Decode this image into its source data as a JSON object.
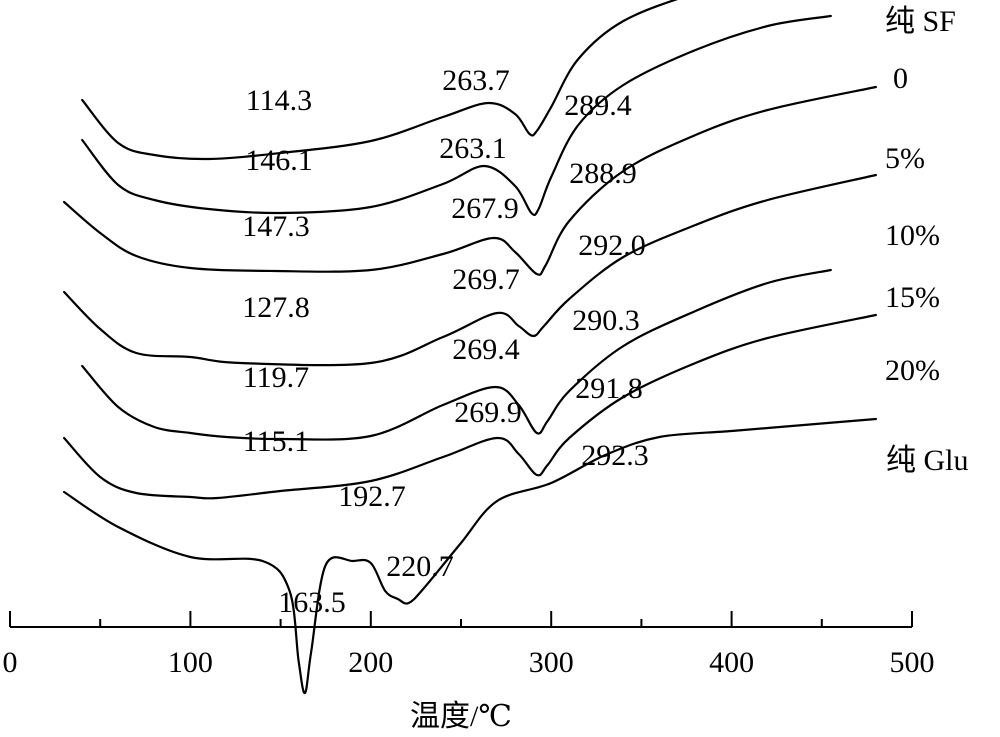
{
  "chart_data": {
    "type": "line",
    "title": "",
    "xlabel": "温度/℃",
    "ylabel": "",
    "xlim": [
      0,
      500
    ],
    "xticks": [
      0,
      100,
      200,
      300,
      400,
      500
    ],
    "grid": false,
    "legend": "curve labels at right end of each curve",
    "series": [
      {
        "name": "纯 SF",
        "x": [
          40,
          60,
          80,
          110,
          150,
          200,
          240,
          265,
          280,
          288,
          292,
          300,
          315,
          340,
          380,
          420,
          455
        ],
        "y": [
          0,
          -0.43,
          -0.55,
          -0.59,
          -0.53,
          -0.41,
          -0.17,
          -0.03,
          -0.14,
          -0.34,
          -0.31,
          -0.07,
          0.41,
          0.79,
          1.07,
          1.27,
          1.38
        ],
        "annotations": [
          {
            "x": 114.3,
            "label": "114.3"
          },
          {
            "x": 263.7,
            "label": "263.7"
          },
          {
            "x": 289.4,
            "label": "289.4"
          }
        ]
      },
      {
        "name": "0",
        "x": [
          40,
          60,
          80,
          110,
          150,
          200,
          240,
          263,
          280,
          289,
          293,
          300,
          315,
          340,
          380,
          420,
          455
        ],
        "y": [
          0,
          -0.45,
          -0.6,
          -0.69,
          -0.73,
          -0.67,
          -0.44,
          -0.26,
          -0.46,
          -0.73,
          -0.69,
          -0.37,
          0.15,
          0.55,
          0.9,
          1.14,
          1.24
        ],
        "annotations": [
          {
            "x": 146.1,
            "label": "146.1"
          },
          {
            "x": 263.1,
            "label": "263.1"
          },
          {
            "x": 288.9,
            "label": "288.9"
          }
        ]
      },
      {
        "name": "5%",
        "x": [
          30,
          50,
          70,
          100,
          147,
          200,
          240,
          268,
          280,
          292,
          297,
          310,
          340,
          380,
          420,
          480
        ],
        "y": [
          0,
          -0.31,
          -0.54,
          -0.66,
          -0.69,
          -0.68,
          -0.52,
          -0.36,
          -0.5,
          -0.72,
          -0.63,
          -0.19,
          0.31,
          0.67,
          0.92,
          1.15
        ],
        "annotations": [
          {
            "x": 147.3,
            "label": "147.3"
          },
          {
            "x": 267.9,
            "label": "267.9"
          },
          {
            "x": 292.0,
            "label": "292.0"
          }
        ]
      },
      {
        "name": "10%",
        "x": [
          30,
          50,
          70,
          100,
          128,
          200,
          240,
          270,
          282,
          290,
          296,
          310,
          340,
          380,
          420,
          480
        ],
        "y": [
          0,
          -0.37,
          -0.61,
          -0.65,
          -0.71,
          -0.71,
          -0.45,
          -0.21,
          -0.34,
          -0.44,
          -0.34,
          -0.07,
          0.35,
          0.67,
          0.92,
          1.17
        ],
        "annotations": [
          {
            "x": 127.8,
            "label": "127.8"
          },
          {
            "x": 269.7,
            "label": "269.7"
          },
          {
            "x": 290.3,
            "label": "290.3"
          }
        ]
      },
      {
        "name": "15%",
        "x": [
          40,
          60,
          80,
          100,
          120,
          150,
          200,
          240,
          269,
          282,
          292,
          298,
          310,
          340,
          380,
          420,
          455
        ],
        "y": [
          0,
          -0.41,
          -0.61,
          -0.67,
          -0.71,
          -0.73,
          -0.7,
          -0.39,
          -0.21,
          -0.39,
          -0.67,
          -0.55,
          -0.25,
          0.2,
          0.55,
          0.83,
          0.96
        ],
        "annotations": [
          {
            "x": 119.7,
            "label": "119.7"
          },
          {
            "x": 269.4,
            "label": "269.4"
          },
          {
            "x": 291.8,
            "label": "291.8"
          }
        ]
      },
      {
        "name": "20%",
        "x": [
          30,
          50,
          70,
          100,
          115,
          150,
          200,
          240,
          270,
          282,
          292,
          298,
          310,
          340,
          380,
          420,
          480
        ],
        "y": [
          0,
          -0.39,
          -0.55,
          -0.59,
          -0.6,
          -0.53,
          -0.43,
          -0.19,
          0,
          -0.16,
          -0.37,
          -0.27,
          0,
          0.41,
          0.75,
          1.0,
          1.23
        ],
        "annotations": [
          {
            "x": 115.1,
            "label": "115.1"
          },
          {
            "x": 269.9,
            "label": "269.9"
          },
          {
            "x": 292.3,
            "label": "292.3"
          }
        ]
      },
      {
        "name": "纯 Glu",
        "x": [
          30,
          60,
          100,
          140,
          155,
          160,
          163.5,
          167,
          175,
          190,
          200,
          208,
          215,
          221,
          230,
          250,
          270,
          300,
          330,
          360,
          400,
          440,
          480
        ],
        "y": [
          0,
          -0.35,
          -0.65,
          -0.69,
          -0.99,
          -1.69,
          -2.01,
          -1.59,
          -0.73,
          -0.69,
          -0.71,
          -0.99,
          -1.07,
          -1.11,
          -0.95,
          -0.51,
          -0.09,
          0.09,
          0.37,
          0.55,
          0.61,
          0.67,
          0.73
        ],
        "annotations": [
          {
            "x": 163.5,
            "label": "163.5"
          },
          {
            "x": 192.7,
            "label": "192.7"
          },
          {
            "x": 220.7,
            "label": "220.7"
          }
        ]
      }
    ]
  }
}
